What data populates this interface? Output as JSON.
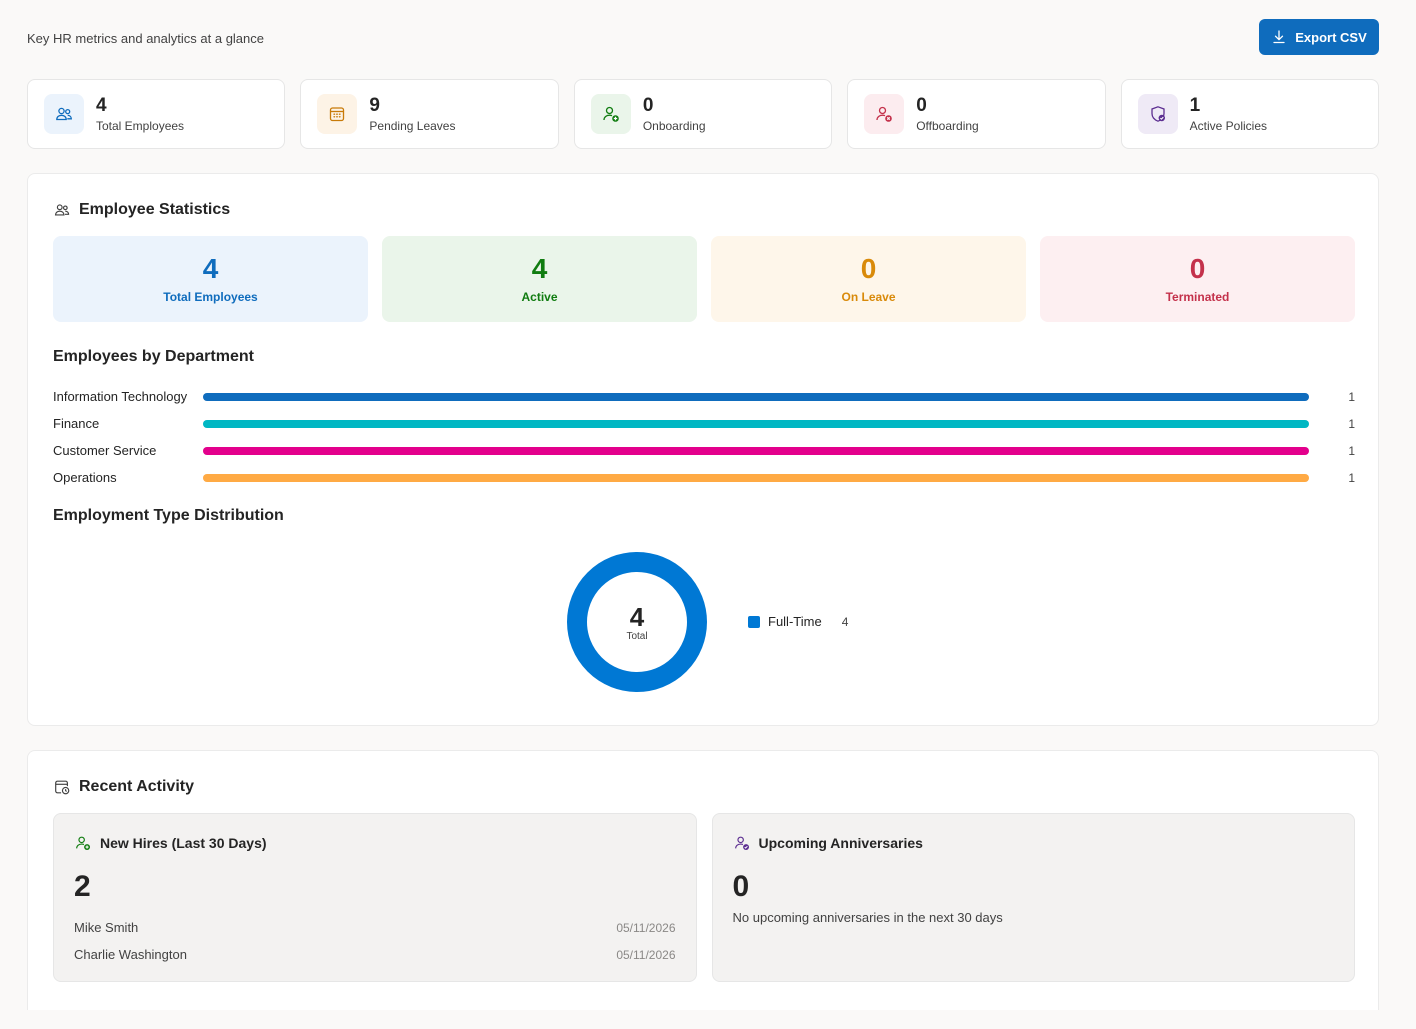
{
  "header": {
    "subtitle": "Key HR metrics and analytics at a glance",
    "export_label": "Export CSV"
  },
  "kpis": [
    {
      "value": "4",
      "label": "Total Employees",
      "icon": "people-icon",
      "color": "#0f6cbd",
      "bg": "#ebf3fc"
    },
    {
      "value": "9",
      "label": "Pending Leaves",
      "icon": "calendar-icon",
      "color": "#c87a08",
      "bg": "#fdf3e6"
    },
    {
      "value": "0",
      "label": "Onboarding",
      "icon": "person-add-icon",
      "color": "#107c10",
      "bg": "#eaf5ea"
    },
    {
      "value": "0",
      "label": "Offboarding",
      "icon": "person-remove-icon",
      "color": "#c4314b",
      "bg": "#fcecef"
    },
    {
      "value": "1",
      "label": "Active Policies",
      "icon": "shield-check-icon",
      "color": "#5c2e91",
      "bg": "#efeaf6"
    }
  ],
  "employee_stats": {
    "title": "Employee Statistics",
    "boxes": [
      {
        "value": "4",
        "label": "Total Employees",
        "color": "#0f6cbd",
        "bg": "#ebf3fc"
      },
      {
        "value": "4",
        "label": "Active",
        "color": "#107c10",
        "bg": "#eaf5ea"
      },
      {
        "value": "0",
        "label": "On Leave",
        "color": "#d98a0a",
        "bg": "#fef6ea"
      },
      {
        "value": "0",
        "label": "Terminated",
        "color": "#c4314b",
        "bg": "#fdeff1"
      }
    ]
  },
  "departments": {
    "title": "Employees by Department",
    "items": [
      {
        "name": "Information Technology",
        "count": "1",
        "fraction": 1.0,
        "color": "#0f6cbd"
      },
      {
        "name": "Finance",
        "count": "1",
        "fraction": 1.0,
        "color": "#00b7c3"
      },
      {
        "name": "Customer Service",
        "count": "1",
        "fraction": 1.0,
        "color": "#e3008c"
      },
      {
        "name": "Operations",
        "count": "1",
        "fraction": 1.0,
        "color": "#ffaa44"
      }
    ]
  },
  "employment_type": {
    "title": "Employment Type Distribution",
    "total": "4",
    "total_label": "Total",
    "legend": [
      {
        "name": "Full-Time",
        "count": "4",
        "color": "#0078d4"
      }
    ]
  },
  "chart_data": {
    "type": "pie",
    "title": "Employment Type Distribution",
    "categories": [
      "Full-Time"
    ],
    "values": [
      4
    ]
  },
  "recent_activity": {
    "title": "Recent Activity",
    "new_hires": {
      "title": "New Hires (Last 30 Days)",
      "count": "2",
      "items": [
        {
          "name": "Mike Smith",
          "date": "05/11/2026"
        },
        {
          "name": "Charlie Washington",
          "date": "05/11/2026"
        }
      ]
    },
    "anniversaries": {
      "title": "Upcoming Anniversaries",
      "count": "0",
      "empty_text": "No upcoming anniversaries in the next 30 days"
    }
  }
}
